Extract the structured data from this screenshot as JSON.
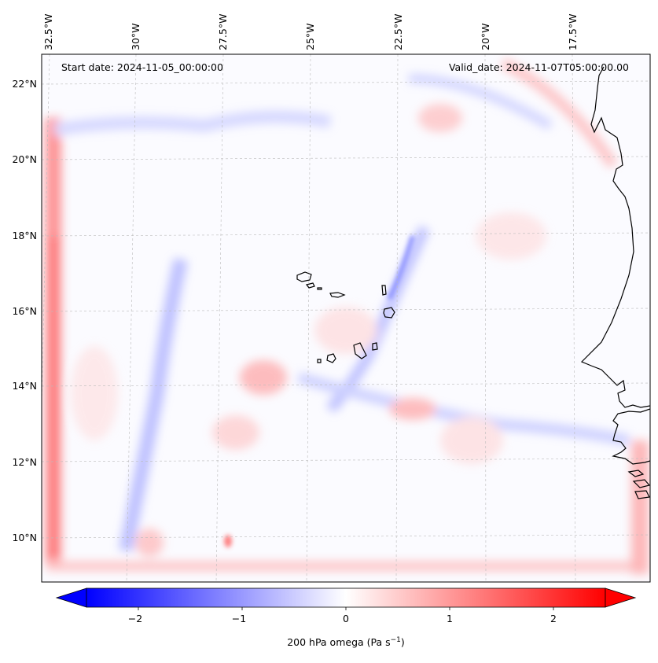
{
  "map": {
    "start_label": "Start date: 2024-11-05_00:00:00",
    "valid_label": "Valid_date: 2024-11-07T05:00:00.00",
    "lon_ticks": [
      "32.5°W",
      "30°W",
      "27.5°W",
      "25°W",
      "22.5°W",
      "20°W",
      "17.5°W"
    ],
    "lat_ticks": [
      "22°N",
      "20°N",
      "18°N",
      "16°N",
      "14°N",
      "12°N",
      "10°N"
    ],
    "colorbar": {
      "ticks": [
        "−2",
        "−1",
        "0",
        "1",
        "2"
      ],
      "label_main": "200 hPa omega (Pa s",
      "label_sup": "−1",
      "label_end": ")",
      "min_value": -2.5,
      "max_value": 2.5,
      "negative_color": "#0000ff",
      "positive_color": "#ff0000"
    },
    "colors": {
      "coast": "#000000",
      "gridline": "#bbbbbb",
      "field_blue": "#7f86ff",
      "field_red": "#ff7f7f"
    }
  }
}
